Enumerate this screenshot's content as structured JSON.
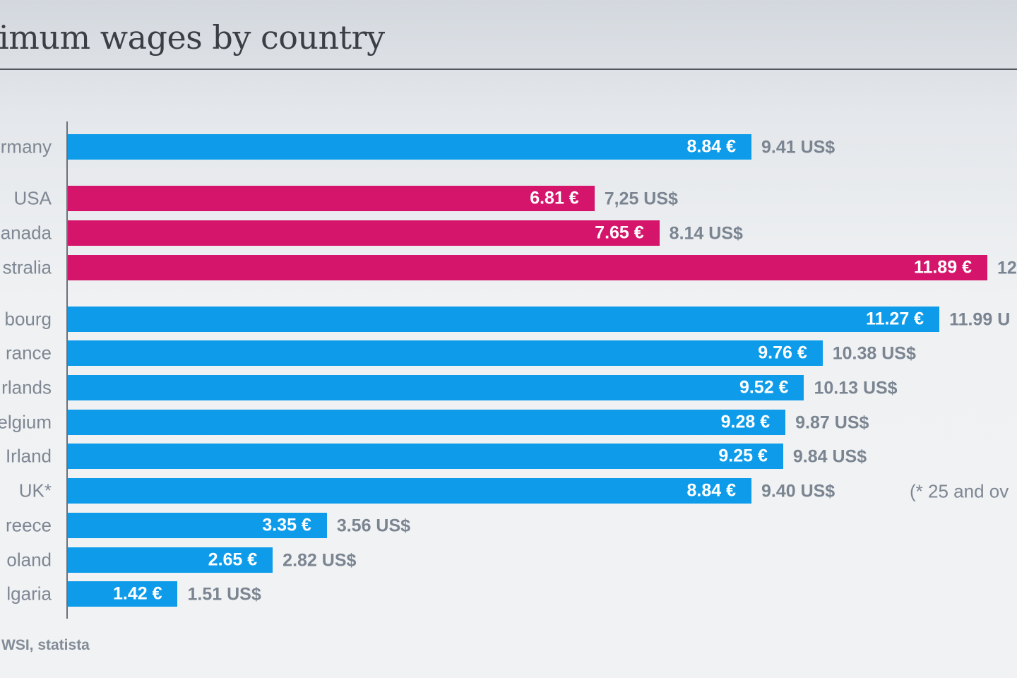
{
  "chart_data": {
    "type": "bar",
    "orientation": "horizontal",
    "title": "imum wages by country",
    "categories": [
      "rmany",
      "USA",
      "anada",
      "stralia",
      "bourg",
      "rance",
      "rlands",
      "elgium",
      "Irland",
      "UK*",
      "reece",
      "oland",
      "lgaria"
    ],
    "values_eur": [
      8.84,
      6.81,
      7.65,
      11.89,
      11.27,
      9.76,
      9.52,
      9.28,
      9.25,
      8.84,
      3.35,
      2.65,
      1.42
    ],
    "eur_labels": [
      "8.84 €",
      "6.81 €",
      "7.65 €",
      "11.89 €",
      "11.27 €",
      "9.76 €",
      "9.52 €",
      "9.28 €",
      "9.25 €",
      "8.84 €",
      "3.35 €",
      "2.65 €",
      "1.42 €"
    ],
    "usd_labels": [
      "9.41 US$",
      "7,25 US$",
      "8.14 US$",
      "12.",
      "11.99 U",
      "10.38 US$",
      "10.13 US$",
      "9.87 US$",
      "9.84 US$",
      "9.40 US$",
      "3.56 US$",
      "2.82 US$",
      "1.51 US$"
    ],
    "groups": [
      "blue",
      "magenta",
      "magenta",
      "magenta",
      "blue",
      "blue",
      "blue",
      "blue",
      "blue",
      "blue",
      "blue",
      "blue",
      "blue"
    ],
    "colors": {
      "blue": "#0e9cea",
      "magenta": "#d5156b"
    },
    "footnote": "(* 25 and ov",
    "source": "WSI, statista",
    "grid": false,
    "legend": "none"
  }
}
